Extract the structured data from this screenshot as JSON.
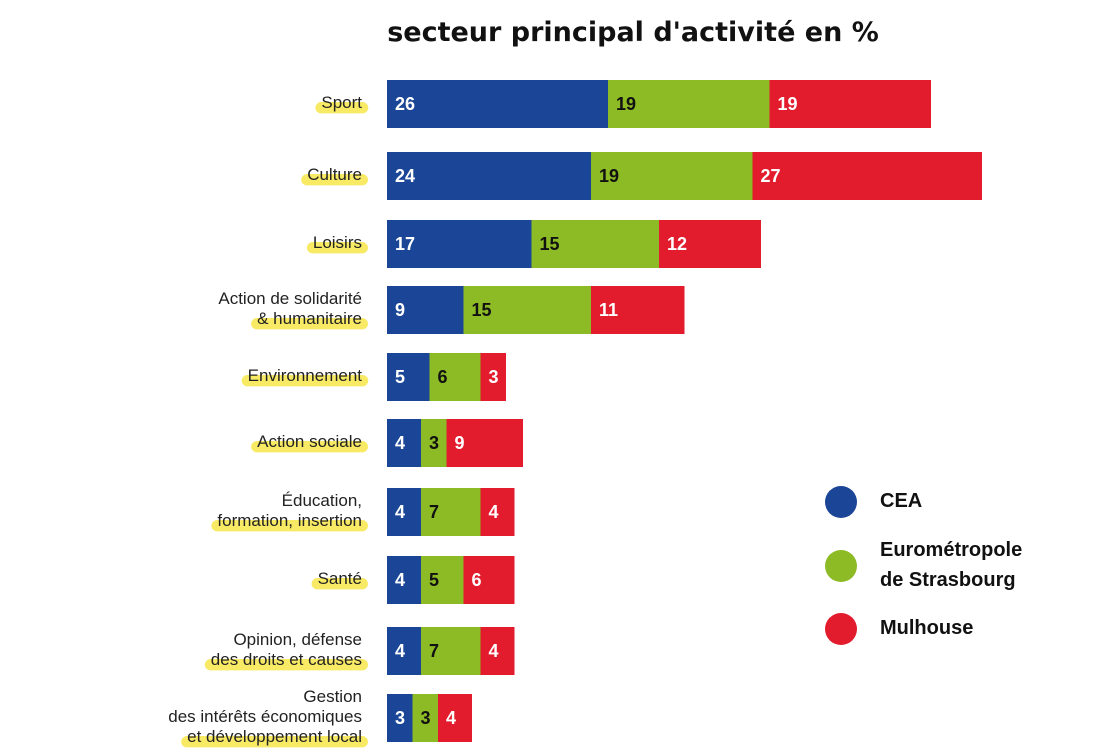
{
  "chart_data": {
    "type": "stacked-bar",
    "orientation": "horizontal",
    "title": "secteur principal d'activité en %",
    "categories": [
      "Sport",
      "Culture",
      "Loisirs",
      "Action de solidarité\n& humanitaire",
      "Environnement",
      "Action sociale",
      "Éducation,\nformation, insertion",
      "Santé",
      "Opinion, défense\ndes droits et causes",
      "Gestion\ndes intérêts économiques\net développement local"
    ],
    "series": [
      {
        "name": "CEA",
        "color": "#1b4596",
        "label_color": "#ffffff",
        "values": [
          26,
          24,
          17,
          9,
          5,
          4,
          4,
          4,
          4,
          3
        ]
      },
      {
        "name": "Eurométropole\nde Strasbourg",
        "color": "#8dbb25",
        "label_color": "#111111",
        "values": [
          19,
          19,
          15,
          15,
          6,
          3,
          7,
          5,
          7,
          3
        ]
      },
      {
        "name": "Mulhouse",
        "color": "#e21b2d",
        "label_color": "#ffffff",
        "values": [
          19,
          27,
          12,
          11,
          3,
          9,
          4,
          6,
          4,
          4
        ]
      }
    ]
  }
}
